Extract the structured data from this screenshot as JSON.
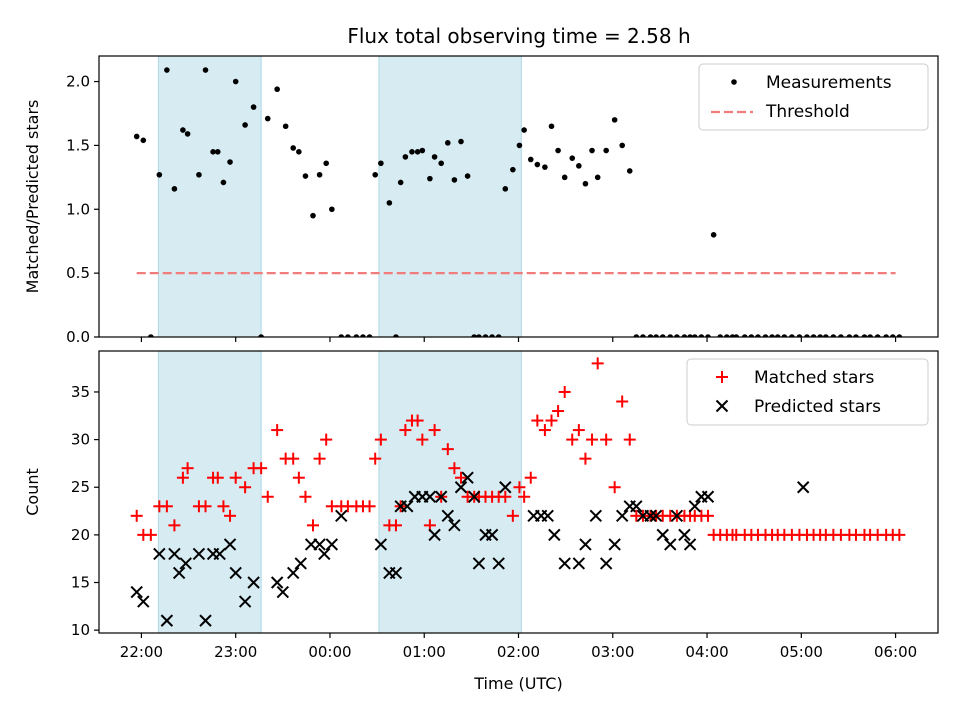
{
  "title": "Flux total observing time = 2.58 h",
  "chart_data": [
    {
      "type": "scatter",
      "ylabel": "Matched/Predicted stars",
      "ylim": [
        0,
        2.2
      ],
      "yticks": [
        0.0,
        0.5,
        1.0,
        1.5,
        2.0
      ],
      "ytick_labels": [
        "0.0",
        "0.5",
        "1.0",
        "1.5",
        "2.0"
      ],
      "xlim": [
        -0.45,
        8.45
      ],
      "legend": {
        "placement": "upper-right",
        "entries": [
          "Measurements",
          "Threshold"
        ]
      },
      "shaded_intervals": [
        [
          0.18,
          1.27
        ],
        [
          2.52,
          4.03
        ]
      ],
      "threshold": {
        "name": "Threshold",
        "y": 0.5,
        "x": [
          -0.05,
          8.0
        ],
        "color": "#f07c7c"
      },
      "series": [
        {
          "name": "Measurements",
          "color": "#000000",
          "x": [
            -0.05,
            0.02,
            0.1,
            0.19,
            0.27,
            0.35,
            0.44,
            0.49,
            0.61,
            0.68,
            0.76,
            0.81,
            0.87,
            0.94,
            1.0,
            1.1,
            1.19,
            1.27,
            1.34,
            1.44,
            1.53,
            1.61,
            1.67,
            1.74,
            1.82,
            1.89,
            1.96,
            2.02,
            2.12,
            2.19,
            2.28,
            2.35,
            2.42,
            2.48,
            2.54,
            2.63,
            2.7,
            2.75,
            2.8,
            2.87,
            2.93,
            2.98,
            3.06,
            3.11,
            3.18,
            3.25,
            3.32,
            3.39,
            3.46,
            3.53,
            3.58,
            3.65,
            3.72,
            3.79,
            3.86,
            3.94,
            4.01,
            4.06,
            4.13,
            4.2,
            4.28,
            4.35,
            4.42,
            4.49,
            4.57,
            4.64,
            4.71,
            4.78,
            4.84,
            4.93,
            5.02,
            5.1,
            5.18,
            5.25,
            5.32,
            5.4,
            5.46,
            5.53,
            5.61,
            5.68,
            5.76,
            5.82,
            5.87,
            5.94,
            6.01,
            6.07,
            6.14,
            6.21,
            6.27,
            6.31,
            6.4,
            6.47,
            6.54,
            6.62,
            6.69,
            6.75,
            6.82,
            6.9,
            6.98,
            7.06,
            7.13,
            7.2,
            7.26,
            7.34,
            7.42,
            7.51,
            7.58,
            7.67,
            7.73,
            7.81,
            7.9,
            7.97,
            8.04
          ],
          "y": [
            1.57,
            1.54,
            0.0,
            1.27,
            2.09,
            1.16,
            1.62,
            1.59,
            1.27,
            2.09,
            1.45,
            1.45,
            1.21,
            1.37,
            2.0,
            1.66,
            1.8,
            0.0,
            1.71,
            1.94,
            1.65,
            1.48,
            1.45,
            1.26,
            0.95,
            1.27,
            1.36,
            1.0,
            0.0,
            0.0,
            0.0,
            0.0,
            0.0,
            1.27,
            1.36,
            1.05,
            0.0,
            1.21,
            1.41,
            1.45,
            1.45,
            1.46,
            1.24,
            1.41,
            1.36,
            1.52,
            1.23,
            1.53,
            1.26,
            0.0,
            0.0,
            0.0,
            0.0,
            0.0,
            1.16,
            1.31,
            1.5,
            1.62,
            1.39,
            1.35,
            1.33,
            1.65,
            1.46,
            1.25,
            1.4,
            1.34,
            1.2,
            1.46,
            1.25,
            1.46,
            1.7,
            1.5,
            1.3,
            0.0,
            0.0,
            0.0,
            0.0,
            0.0,
            0.0,
            0.0,
            0.0,
            0.0,
            0.0,
            0.0,
            0.0,
            0.8,
            0.0,
            0.0,
            0.0,
            0.0,
            0.0,
            0.0,
            0.0,
            0.0,
            0.0,
            0.0,
            0.0,
            0.0,
            0.0,
            0.0,
            0.0,
            0.0,
            0.0,
            0.0,
            0.0,
            0.0,
            0.0,
            0.0,
            0.0,
            0.0,
            0.0,
            0.0,
            0.0
          ]
        }
      ]
    },
    {
      "type": "scatter",
      "xlabel": "Time (UTC)",
      "ylabel": "Count",
      "ylim": [
        9.7,
        39.3
      ],
      "yticks": [
        10,
        15,
        20,
        25,
        30,
        35
      ],
      "ytick_labels": [
        "10",
        "15",
        "20",
        "25",
        "30",
        "35"
      ],
      "xlim": [
        -0.45,
        8.45
      ],
      "xticks": [
        0,
        1,
        2,
        3,
        4,
        5,
        6,
        7,
        8
      ],
      "xtick_labels": [
        "22:00",
        "23:00",
        "00:00",
        "01:00",
        "02:00",
        "03:00",
        "04:00",
        "05:00",
        "06:00"
      ],
      "legend": {
        "placement": "upper-right",
        "entries": [
          "Matched stars",
          "Predicted stars"
        ]
      },
      "shaded_intervals": [
        [
          0.18,
          1.27
        ],
        [
          2.52,
          4.03
        ]
      ],
      "series": [
        {
          "name": "Matched stars",
          "marker": "+",
          "color": "#ff0000",
          "x": [
            -0.05,
            0.02,
            0.1,
            0.19,
            0.27,
            0.35,
            0.44,
            0.49,
            0.61,
            0.68,
            0.76,
            0.81,
            0.87,
            0.94,
            1.0,
            1.1,
            1.19,
            1.27,
            1.34,
            1.44,
            1.53,
            1.61,
            1.67,
            1.74,
            1.82,
            1.89,
            1.96,
            2.02,
            2.12,
            2.19,
            2.28,
            2.35,
            2.42,
            2.48,
            2.54,
            2.63,
            2.7,
            2.75,
            2.8,
            2.87,
            2.93,
            2.98,
            3.06,
            3.11,
            3.18,
            3.25,
            3.32,
            3.39,
            3.46,
            3.53,
            3.58,
            3.65,
            3.72,
            3.79,
            3.86,
            3.94,
            4.01,
            4.06,
            4.13,
            4.2,
            4.28,
            4.35,
            4.42,
            4.49,
            4.57,
            4.64,
            4.71,
            4.78,
            4.84,
            4.93,
            5.02,
            5.1,
            5.18,
            5.25,
            5.32,
            5.4,
            5.46,
            5.53,
            5.61,
            5.68,
            5.76,
            5.82,
            5.87,
            5.94,
            6.01,
            6.07,
            6.14,
            6.21,
            6.27,
            6.31,
            6.4,
            6.47,
            6.54,
            6.62,
            6.69,
            6.75,
            6.82,
            6.9,
            6.98,
            7.06,
            7.13,
            7.2,
            7.26,
            7.34,
            7.42,
            7.51,
            7.58,
            7.67,
            7.73,
            7.81,
            7.9,
            7.97,
            8.04
          ],
          "y": [
            22,
            20,
            20,
            23,
            23,
            21,
            26,
            27,
            23,
            23,
            26,
            26,
            23,
            22,
            26,
            25,
            27,
            27,
            24,
            31,
            28,
            28,
            26,
            24,
            21,
            28,
            30,
            23,
            23,
            23,
            23,
            23,
            23,
            28,
            30,
            21,
            21,
            23,
            31,
            32,
            32,
            30,
            21,
            31,
            24,
            29,
            27,
            26,
            24,
            24,
            24,
            24,
            24,
            24,
            24,
            22,
            25,
            24,
            26,
            32,
            31,
            32,
            33,
            35,
            30,
            31,
            28,
            30,
            38,
            30,
            25,
            34,
            30,
            22,
            22,
            22,
            22,
            22,
            22,
            22,
            22,
            22,
            22,
            22,
            22,
            20,
            20,
            20,
            20,
            20,
            20,
            20,
            20,
            20,
            20,
            20,
            20,
            20,
            20,
            20,
            20,
            20,
            20,
            20,
            20,
            20,
            20,
            20,
            20,
            20,
            20,
            20,
            20
          ],
          "x_visible_note": ""
        },
        {
          "name": "Predicted stars",
          "marker": "x",
          "color": "#000000",
          "x": [
            -0.05,
            0.02,
            0.19,
            0.27,
            0.35,
            0.4,
            0.47,
            0.61,
            0.68,
            0.76,
            0.83,
            0.94,
            1.0,
            1.1,
            1.19,
            1.44,
            1.5,
            1.61,
            1.69,
            1.8,
            1.89,
            1.94,
            2.02,
            2.12,
            2.54,
            2.63,
            2.7,
            2.75,
            2.82,
            2.9,
            2.98,
            3.06,
            3.11,
            3.18,
            3.25,
            3.32,
            3.39,
            3.46,
            3.53,
            3.58,
            3.65,
            3.72,
            3.79,
            3.86,
            4.16,
            4.24,
            4.31,
            4.38,
            4.49,
            4.64,
            4.71,
            4.82,
            4.93,
            5.02,
            5.1,
            5.18,
            5.25,
            5.32,
            5.4,
            5.46,
            5.53,
            5.61,
            5.68,
            5.76,
            5.82,
            5.87,
            5.94,
            6.01,
            7.02
          ],
          "y": [
            14,
            13,
            18,
            11,
            18,
            16,
            17,
            18,
            11,
            18,
            18,
            19,
            16,
            13,
            15,
            15,
            14,
            16,
            17,
            19,
            19,
            18,
            19,
            22,
            19,
            16,
            16,
            23,
            23,
            24,
            24,
            24,
            20,
            24,
            22,
            21,
            25,
            26,
            24,
            17,
            20,
            20,
            17,
            25,
            22,
            22,
            22,
            20,
            17,
            17,
            19,
            22,
            17,
            19,
            22,
            23,
            23,
            22,
            22,
            22,
            20,
            19,
            22,
            20,
            19,
            23,
            24,
            24,
            25
          ],
          "x_visible_note": ""
        }
      ]
    }
  ],
  "colors": {
    "shade": "#add8e6",
    "threshold": "#f07c7c",
    "matched": "#ff0000",
    "predicted": "#000000",
    "measurement": "#000000"
  }
}
